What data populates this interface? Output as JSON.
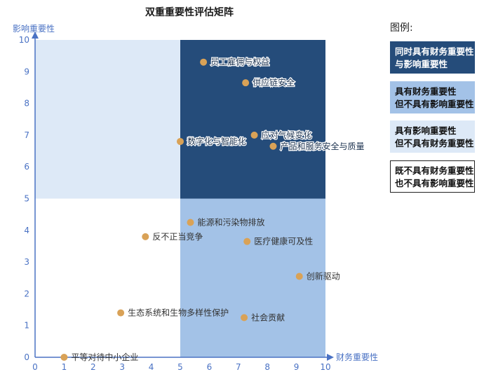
{
  "chart_data": {
    "type": "scatter",
    "title": "双重重要性评估矩阵",
    "xlabel": "财务重要性",
    "ylabel": "影响重要性",
    "xlim": [
      0,
      10
    ],
    "ylim": [
      0,
      10
    ],
    "xticks": [
      0,
      1,
      2,
      3,
      4,
      5,
      6,
      7,
      8,
      9,
      10
    ],
    "yticks": [
      0,
      1,
      2,
      3,
      4,
      5,
      6,
      7,
      8,
      9,
      10
    ],
    "quadrants": [
      {
        "x": [
          5,
          10
        ],
        "y": [
          5,
          10
        ],
        "color": "#254c7a"
      },
      {
        "x": [
          5,
          10
        ],
        "y": [
          0,
          5
        ],
        "color": "#a3c2e7"
      },
      {
        "x": [
          0,
          5
        ],
        "y": [
          5,
          10
        ],
        "color": "#dde9f7"
      },
      {
        "x": [
          0,
          5
        ],
        "y": [
          0,
          5
        ],
        "color": "#ffffff"
      }
    ],
    "point_color": "#d9a257",
    "points": [
      {
        "label": "员工雇佣与权益",
        "x": 5.8,
        "y": 9.3
      },
      {
        "label": "供应链安全",
        "x": 7.25,
        "y": 8.65
      },
      {
        "label": "应对气候变化",
        "x": 7.55,
        "y": 7.0
      },
      {
        "label": "数字化与智能化",
        "x": 5.0,
        "y": 6.8
      },
      {
        "label": "产品和服务安全与质量",
        "x": 8.2,
        "y": 6.65
      },
      {
        "label": "能源和污染物排放",
        "x": 5.35,
        "y": 4.25
      },
      {
        "label": "反不正当竞争",
        "x": 3.8,
        "y": 3.8
      },
      {
        "label": "医疗健康可及性",
        "x": 7.3,
        "y": 3.65
      },
      {
        "label": "创新驱动",
        "x": 9.1,
        "y": 2.55
      },
      {
        "label": "生态系统和生物多样性保护",
        "x": 2.95,
        "y": 1.4
      },
      {
        "label": "社会贡献",
        "x": 7.2,
        "y": 1.25
      },
      {
        "label": "平等对待中小企业",
        "x": 1.0,
        "y": 0.0
      }
    ]
  },
  "legend": {
    "title": "图例:",
    "items": [
      {
        "line1": "同时具有财务重要性",
        "line2": "与影响重要性",
        "bg": "#254c7a",
        "fg": "#ffffff",
        "border": "#254c7a"
      },
      {
        "line1": "具有财务重要性",
        "line2": "但不具有影响重要性",
        "bg": "#a3c2e7",
        "fg": "#111111",
        "border": "#a3c2e7"
      },
      {
        "line1": "具有影响重要性",
        "line2": "但不具有财务重要性",
        "bg": "#dde9f7",
        "fg": "#111111",
        "border": "#dde9f7"
      },
      {
        "line1": "既不具有财务重要性",
        "line2": "也不具有影响重要性",
        "bg": "#ffffff",
        "fg": "#111111",
        "border": "#222222"
      }
    ]
  }
}
